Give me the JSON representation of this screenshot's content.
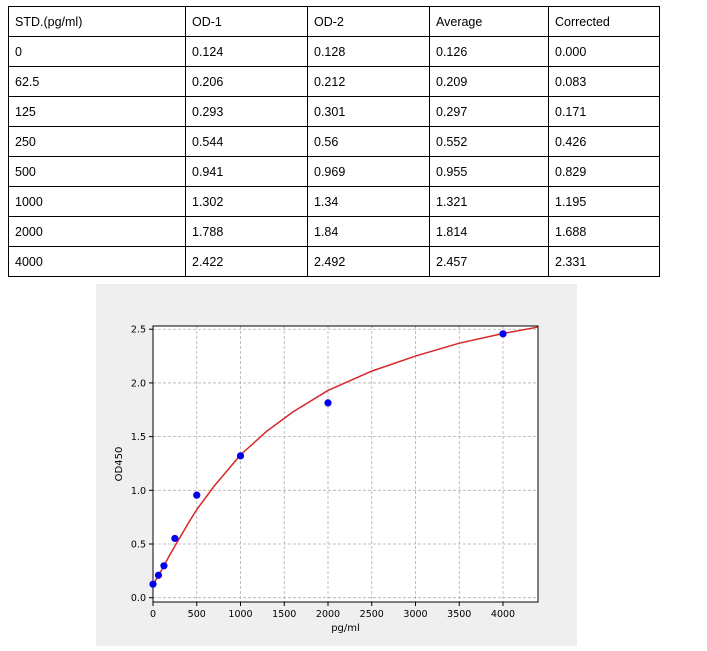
{
  "table": {
    "headers": [
      "STD.(pg/ml)",
      "OD-1",
      "OD-2",
      "Average",
      "Corrected"
    ],
    "rows": [
      [
        "0",
        "0.124",
        "0.128",
        "0.126",
        "0.000"
      ],
      [
        "62.5",
        "0.206",
        "0.212",
        "0.209",
        "0.083"
      ],
      [
        "125",
        "0.293",
        "0.301",
        "0.297",
        "0.171"
      ],
      [
        "250",
        "0.544",
        "0.56",
        "0.552",
        "0.426"
      ],
      [
        "500",
        "0.941",
        "0.969",
        "0.955",
        "0.829"
      ],
      [
        "1000",
        "1.302",
        "1.34",
        "1.321",
        "1.195"
      ],
      [
        "2000",
        "1.788",
        "1.84",
        "1.814",
        "1.688"
      ],
      [
        "4000",
        "2.422",
        "2.492",
        "2.457",
        "2.331"
      ]
    ]
  },
  "chart_data": {
    "type": "scatter",
    "xlabel": "pg/ml",
    "ylabel": "OD450",
    "xlim": [
      0,
      4400
    ],
    "ylim": [
      -0.04,
      2.53
    ],
    "xticks": [
      0,
      500,
      1000,
      1500,
      2000,
      2500,
      3000,
      3500,
      4000
    ],
    "yticks": [
      0.0,
      0.5,
      1.0,
      1.5,
      2.0,
      2.5
    ],
    "ytick_labels": [
      "0.0",
      "0.5",
      "1.0",
      "1.5",
      "2.0",
      "2.5"
    ],
    "grid": true,
    "points": {
      "x": [
        0,
        62.5,
        125,
        250,
        500,
        1000,
        2000,
        4000
      ],
      "y": [
        0.126,
        0.209,
        0.297,
        0.552,
        0.955,
        1.321,
        1.814,
        2.457
      ],
      "color": "#0000ee"
    },
    "fit_curve": {
      "x": [
        0,
        50,
        100,
        200,
        300,
        400,
        500,
        700,
        1000,
        1300,
        1600,
        2000,
        2500,
        3000,
        3500,
        4000,
        4400
      ],
      "y": [
        0.12,
        0.19,
        0.26,
        0.41,
        0.55,
        0.69,
        0.82,
        1.04,
        1.33,
        1.55,
        1.73,
        1.93,
        2.11,
        2.25,
        2.37,
        2.46,
        2.52
      ],
      "color": "#d62728"
    }
  }
}
